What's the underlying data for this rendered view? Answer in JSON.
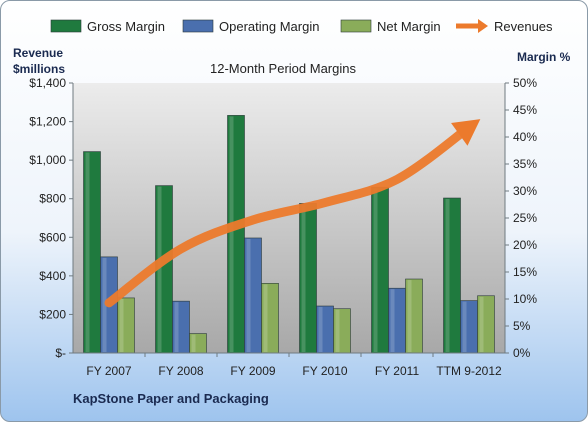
{
  "chart_data": {
    "type": "bar",
    "title": "12-Month Period Margins",
    "left_axis_label_line1": "Revenue",
    "left_axis_label_line2": "$millions",
    "right_axis_label": "Margin %",
    "footer": "KapStone Paper and Packaging",
    "categories": [
      "FY 2007",
      "FY 2008",
      "FY 2009",
      "FY 2010",
      "FY 2011",
      "TTM 9-2012"
    ],
    "left_ticks": [
      "$-",
      "$200",
      "$400",
      "$600",
      "$800",
      "$1,000",
      "$1,200",
      "$1,400"
    ],
    "right_ticks": [
      "0%",
      "5%",
      "10%",
      "15%",
      "20%",
      "25%",
      "30%",
      "35%",
      "40%",
      "45%",
      "50%"
    ],
    "left_ylim": [
      0,
      1400
    ],
    "right_ylim": [
      0,
      50
    ],
    "legend_position": "top",
    "grid": false,
    "series": [
      {
        "name": "Gross Margin",
        "axis": "right",
        "color": "#1f7a3e",
        "values": [
          37.3,
          31.0,
          44.0,
          27.7,
          30.7,
          28.7
        ]
      },
      {
        "name": "Operating Margin",
        "axis": "right",
        "color": "#4a6fae",
        "values": [
          17.8,
          9.6,
          21.3,
          8.7,
          12.0,
          9.7
        ]
      },
      {
        "name": "Net Margin",
        "axis": "right",
        "color": "#8aac5a",
        "values": [
          10.2,
          3.6,
          12.9,
          8.2,
          13.7,
          10.6
        ]
      },
      {
        "name": "Revenues",
        "axis": "left",
        "type": "line",
        "color": "#ec7a2c",
        "values": [
          260,
          540,
          690,
          780,
          900,
          1170
        ]
      }
    ]
  }
}
